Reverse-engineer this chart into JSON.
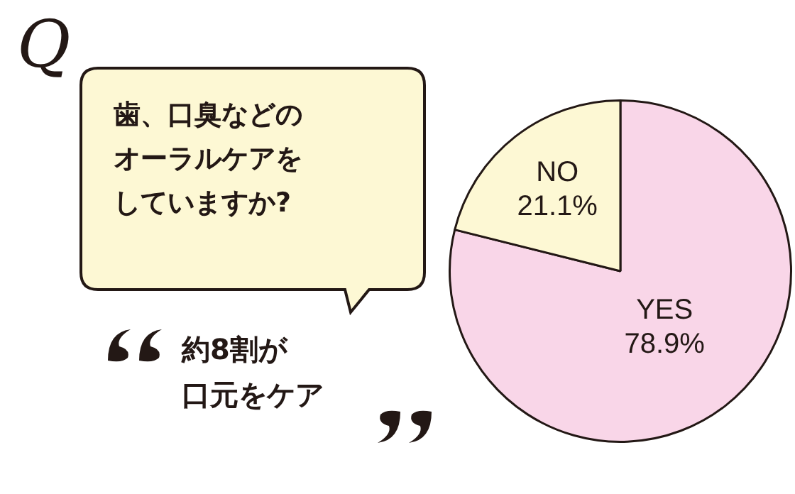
{
  "chart_data": {
    "type": "pie",
    "title": "歯、口臭などのオーラルケアをしていますか?",
    "categories": [
      "YES",
      "NO"
    ],
    "values": [
      78.9,
      21.1
    ],
    "colors": [
      "#f9d6e8",
      "#fdf8d4"
    ],
    "value_labels": [
      "78.9%",
      "21.1%"
    ],
    "annotations": [
      "Q",
      "約8割が",
      "口元をケア"
    ]
  }
}
